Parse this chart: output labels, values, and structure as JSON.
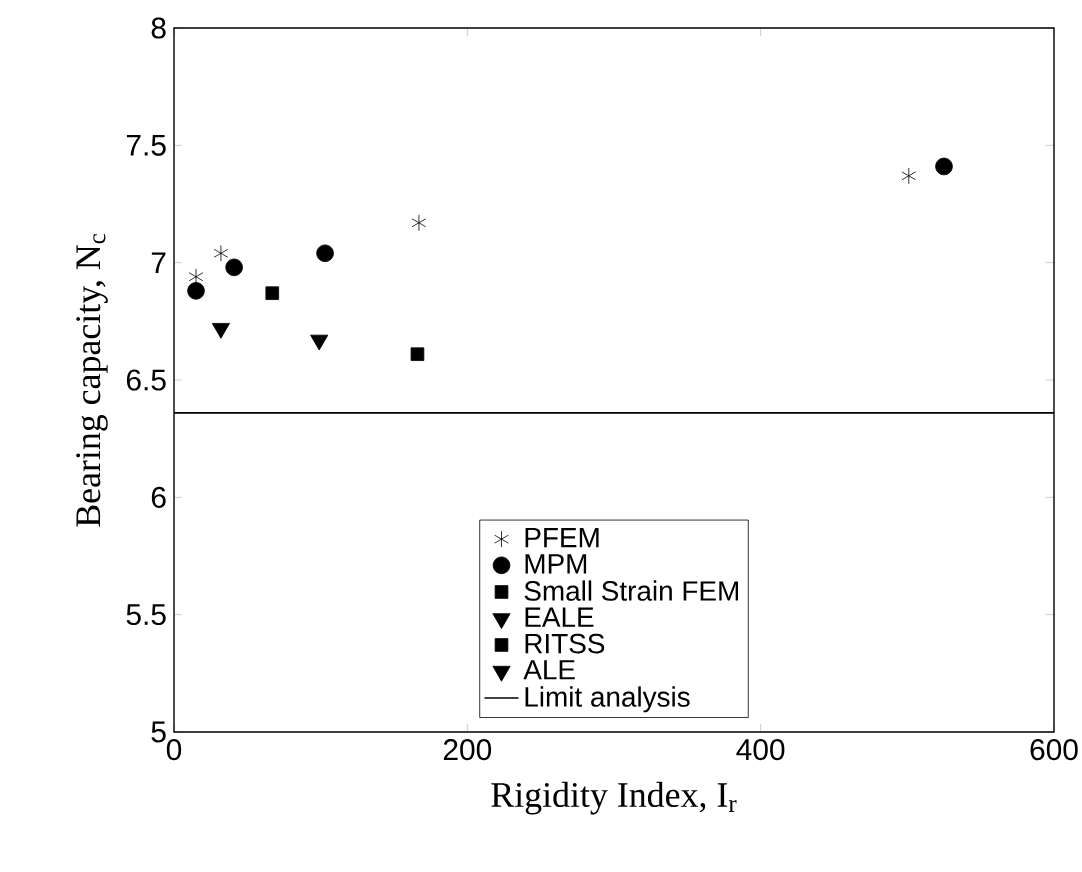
{
  "chart_data": {
    "type": "scatter",
    "xlabel": "Rigidity Index, I$_{r}$",
    "ylabel": "Bearing capacity, N$_{c}$",
    "xlim": [
      0,
      600
    ],
    "ylim": [
      5,
      8
    ],
    "xticks": [
      0,
      200,
      400,
      600
    ],
    "yticks": [
      5,
      5.5,
      6,
      6.5,
      7,
      7.5,
      8
    ],
    "legend": "bottom",
    "series": [
      {
        "name": "PFEM",
        "color": "#000000",
        "marker": "cross",
        "x": [
          15,
          32,
          167,
          501
        ],
        "values": [
          6.94,
          7.04,
          7.17,
          7.37
        ]
      },
      {
        "name": "MPM",
        "color": "#000000",
        "marker": "circle",
        "x": [
          15,
          41,
          103,
          525
        ],
        "values": [
          6.88,
          6.98,
          7.04,
          7.41
        ]
      },
      {
        "name": "Small Strain FEM",
        "color": "#000000",
        "marker": "square",
        "x": [
          166
        ],
        "values": [
          6.61
        ]
      },
      {
        "name": "EALE",
        "color": "#000000",
        "marker": "triangle",
        "x": [
          32
        ],
        "values": [
          6.72
        ]
      },
      {
        "name": "RITSS",
        "color": "#000000",
        "marker": "square",
        "x": [
          67
        ],
        "values": [
          6.87
        ]
      },
      {
        "name": "ALE",
        "color": "#000000",
        "marker": "triangle",
        "x": [
          99
        ],
        "values": [
          6.67
        ]
      },
      {
        "name": "Limit analysis",
        "type": "line",
        "color": "#000000",
        "marker": "none",
        "line_style": "solid",
        "x": [
          0,
          600
        ],
        "values": [
          6.36,
          6.36
        ]
      }
    ]
  }
}
